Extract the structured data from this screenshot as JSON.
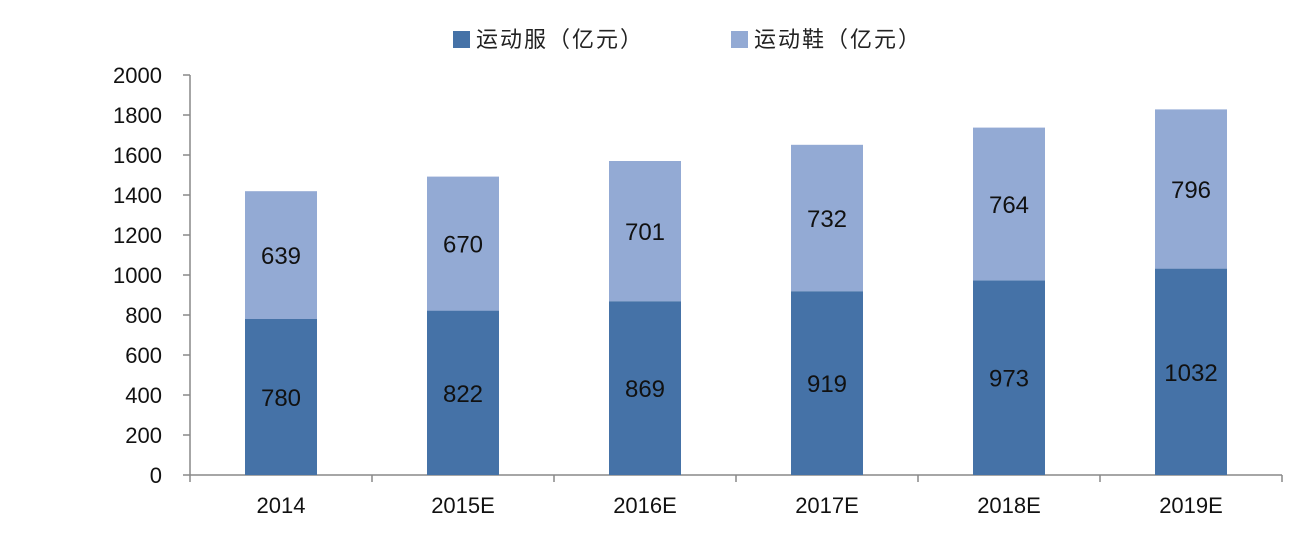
{
  "chart_data": {
    "type": "bar",
    "stacked": true,
    "categories": [
      "2014",
      "2015E",
      "2016E",
      "2017E",
      "2018E",
      "2019E"
    ],
    "series": [
      {
        "name": "运动服（亿元）",
        "values": [
          780,
          822,
          869,
          919,
          973,
          1032
        ],
        "color": "#4572a7"
      },
      {
        "name": "运动鞋（亿元）",
        "values": [
          639,
          670,
          701,
          732,
          764,
          796
        ],
        "color": "#93aad4"
      }
    ],
    "ylim": [
      0,
      2000
    ],
    "ytick_labels": [
      "0",
      "200",
      "400",
      "600",
      "800",
      "1000",
      "1200",
      "1400",
      "1600",
      "1800",
      "2000"
    ],
    "title": "",
    "xlabel": "",
    "ylabel": "",
    "legend_position": "top-center",
    "grid": false
  }
}
